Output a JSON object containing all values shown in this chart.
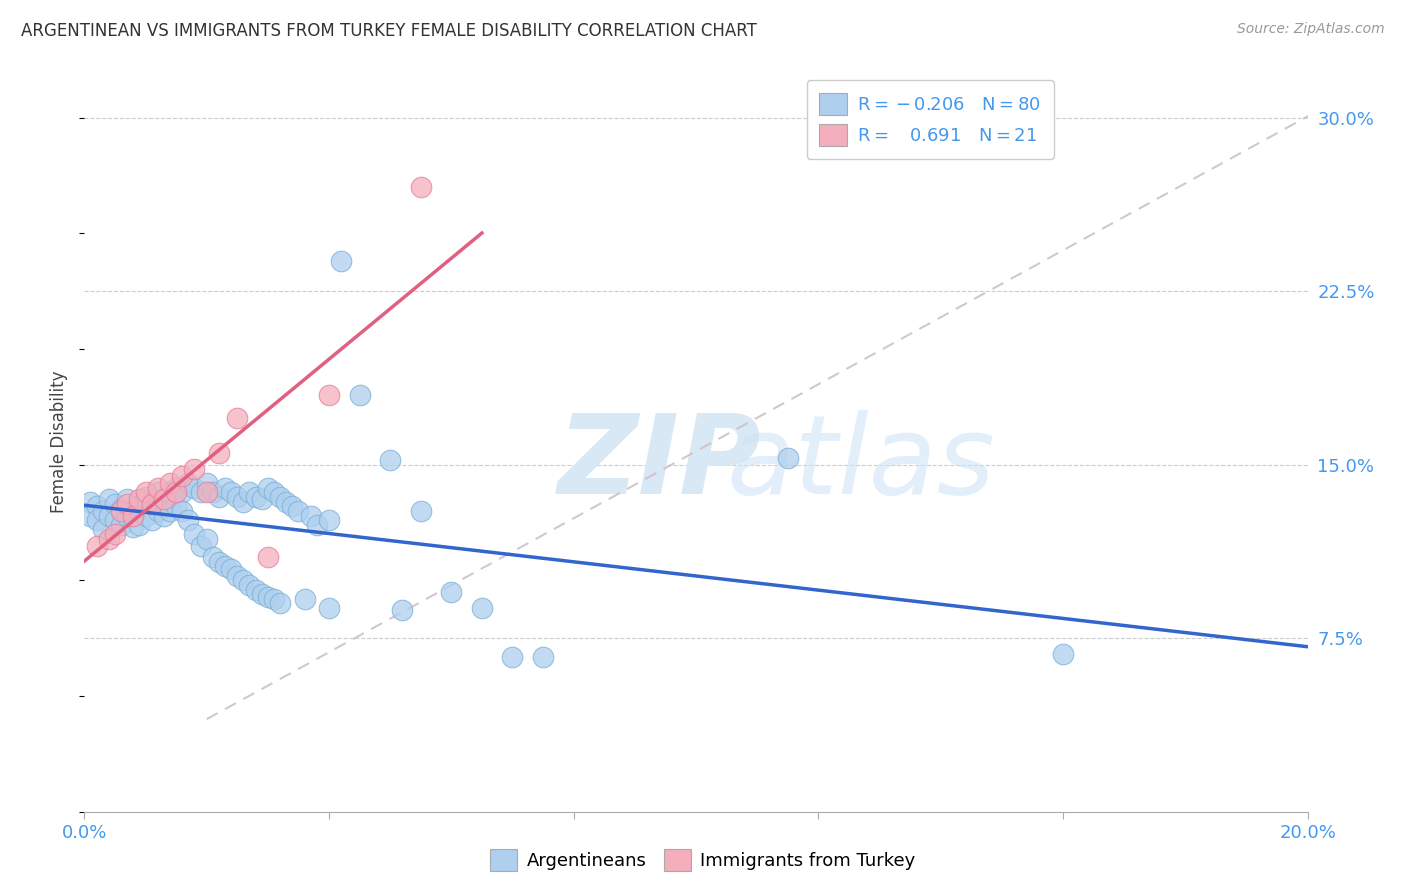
{
  "title": "ARGENTINEAN VS IMMIGRANTS FROM TURKEY FEMALE DISABILITY CORRELATION CHART",
  "source": "Source: ZipAtlas.com",
  "ylabel": "Female Disability",
  "xlim": [
    0.0,
    0.2
  ],
  "ylim": [
    0.0,
    0.32
  ],
  "ytick_positions": [
    0.075,
    0.15,
    0.225,
    0.3
  ],
  "ytick_labels": [
    "7.5%",
    "15.0%",
    "22.5%",
    "30.0%"
  ],
  "xtick_positions": [
    0.0,
    0.04,
    0.08,
    0.12,
    0.16,
    0.2
  ],
  "blue_color": "#AED0EE",
  "blue_edge_color": "#7BAFD4",
  "pink_color": "#F4AEBC",
  "pink_edge_color": "#E87D9A",
  "blue_line_color": "#3366CC",
  "pink_line_color": "#E06080",
  "dashed_line_color": "#D0C0C8",
  "tick_color": "#4499EE",
  "argentineans": [
    [
      0.001,
      0.134
    ],
    [
      0.001,
      0.128
    ],
    [
      0.002,
      0.132
    ],
    [
      0.002,
      0.126
    ],
    [
      0.003,
      0.13
    ],
    [
      0.003,
      0.122
    ],
    [
      0.004,
      0.135
    ],
    [
      0.004,
      0.128
    ],
    [
      0.005,
      0.133
    ],
    [
      0.005,
      0.126
    ],
    [
      0.006,
      0.131
    ],
    [
      0.006,
      0.124
    ],
    [
      0.007,
      0.135
    ],
    [
      0.007,
      0.128
    ],
    [
      0.008,
      0.13
    ],
    [
      0.008,
      0.123
    ],
    [
      0.009,
      0.132
    ],
    [
      0.009,
      0.124
    ],
    [
      0.01,
      0.136
    ],
    [
      0.01,
      0.128
    ],
    [
      0.011,
      0.133
    ],
    [
      0.011,
      0.126
    ],
    [
      0.012,
      0.138
    ],
    [
      0.012,
      0.13
    ],
    [
      0.013,
      0.135
    ],
    [
      0.013,
      0.128
    ],
    [
      0.014,
      0.138
    ],
    [
      0.014,
      0.13
    ],
    [
      0.015,
      0.14
    ],
    [
      0.015,
      0.132
    ],
    [
      0.016,
      0.138
    ],
    [
      0.016,
      0.13
    ],
    [
      0.017,
      0.142
    ],
    [
      0.017,
      0.126
    ],
    [
      0.018,
      0.14
    ],
    [
      0.018,
      0.12
    ],
    [
      0.019,
      0.138
    ],
    [
      0.019,
      0.115
    ],
    [
      0.02,
      0.142
    ],
    [
      0.02,
      0.118
    ],
    [
      0.021,
      0.138
    ],
    [
      0.021,
      0.11
    ],
    [
      0.022,
      0.136
    ],
    [
      0.022,
      0.108
    ],
    [
      0.023,
      0.14
    ],
    [
      0.023,
      0.106
    ],
    [
      0.024,
      0.138
    ],
    [
      0.024,
      0.105
    ],
    [
      0.025,
      0.136
    ],
    [
      0.025,
      0.102
    ],
    [
      0.026,
      0.134
    ],
    [
      0.026,
      0.1
    ],
    [
      0.027,
      0.138
    ],
    [
      0.027,
      0.098
    ],
    [
      0.028,
      0.136
    ],
    [
      0.028,
      0.096
    ],
    [
      0.029,
      0.135
    ],
    [
      0.029,
      0.094
    ],
    [
      0.03,
      0.14
    ],
    [
      0.03,
      0.093
    ],
    [
      0.031,
      0.138
    ],
    [
      0.031,
      0.092
    ],
    [
      0.032,
      0.136
    ],
    [
      0.032,
      0.09
    ],
    [
      0.033,
      0.134
    ],
    [
      0.034,
      0.132
    ],
    [
      0.035,
      0.13
    ],
    [
      0.036,
      0.092
    ],
    [
      0.037,
      0.128
    ],
    [
      0.038,
      0.124
    ],
    [
      0.04,
      0.126
    ],
    [
      0.04,
      0.088
    ],
    [
      0.042,
      0.238
    ],
    [
      0.045,
      0.18
    ],
    [
      0.05,
      0.152
    ],
    [
      0.052,
      0.087
    ],
    [
      0.055,
      0.13
    ],
    [
      0.06,
      0.095
    ],
    [
      0.065,
      0.088
    ],
    [
      0.07,
      0.067
    ],
    [
      0.075,
      0.067
    ],
    [
      0.115,
      0.153
    ],
    [
      0.16,
      0.068
    ]
  ],
  "turkey": [
    [
      0.002,
      0.115
    ],
    [
      0.004,
      0.118
    ],
    [
      0.005,
      0.12
    ],
    [
      0.006,
      0.13
    ],
    [
      0.007,
      0.133
    ],
    [
      0.008,
      0.128
    ],
    [
      0.009,
      0.135
    ],
    [
      0.01,
      0.138
    ],
    [
      0.011,
      0.133
    ],
    [
      0.012,
      0.14
    ],
    [
      0.013,
      0.135
    ],
    [
      0.014,
      0.142
    ],
    [
      0.015,
      0.138
    ],
    [
      0.016,
      0.145
    ],
    [
      0.018,
      0.148
    ],
    [
      0.02,
      0.138
    ],
    [
      0.022,
      0.155
    ],
    [
      0.025,
      0.17
    ],
    [
      0.03,
      0.11
    ],
    [
      0.04,
      0.18
    ],
    [
      0.055,
      0.27
    ]
  ]
}
